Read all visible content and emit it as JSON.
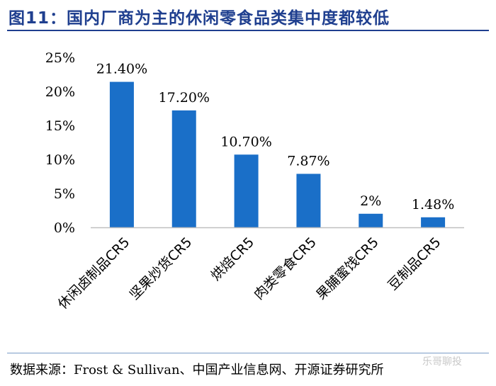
{
  "header": {
    "title": "图11：国内厂商为主的休闲零食品类集中度都较低"
  },
  "chart_data": {
    "type": "bar",
    "categories": [
      "休闲卤制品CR5",
      "坚果炒货CR5",
      "烘焙CR5",
      "肉类零食CR5",
      "果脯蜜饯CR5",
      "豆制品CR5"
    ],
    "values": [
      21.4,
      17.2,
      10.7,
      7.87,
      2.0,
      1.48
    ],
    "data_labels": [
      "21.40%",
      "17.20%",
      "10.70%",
      "7.87%",
      "2%",
      "1.48%"
    ],
    "y_ticks": [
      "0%",
      "5%",
      "10%",
      "15%",
      "20%",
      "25%"
    ],
    "ylim": [
      0,
      25
    ],
    "grid": false,
    "legend": "none",
    "bar_color": "#1a6fc8"
  },
  "footer": {
    "source": "数据来源：Frost & Sullivan、中国产业信息网、开源证券研究所",
    "watermark": "乐哥聊投"
  }
}
